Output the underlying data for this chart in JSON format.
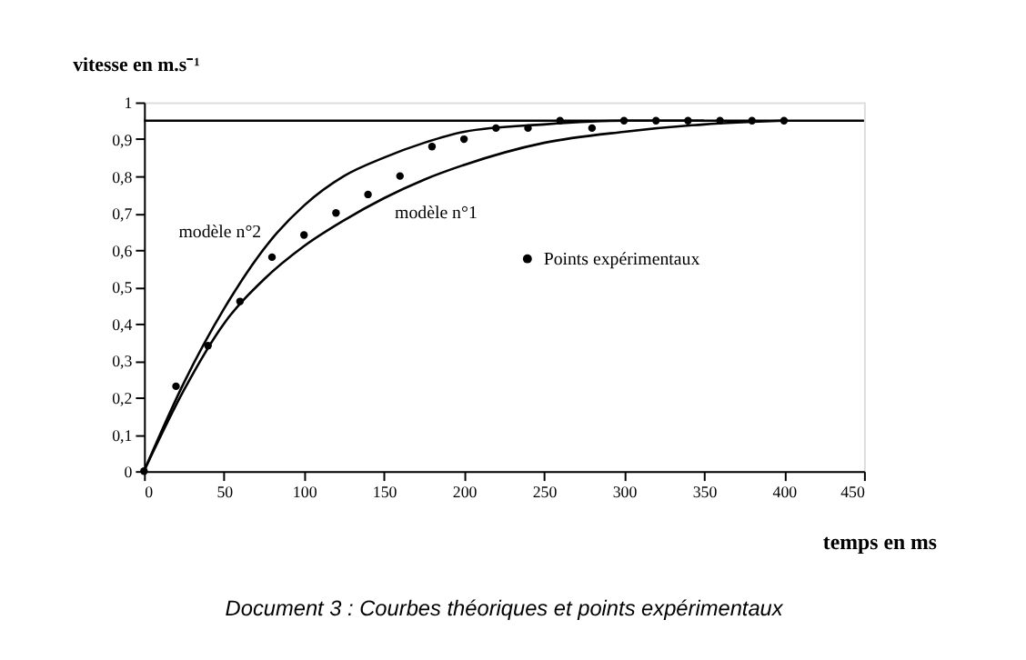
{
  "chart_data": {
    "type": "line",
    "title": "Document 3 : Courbes théoriques et points expérimentaux",
    "xlabel": "temps en ms",
    "ylabel": "vitesse en m.s⁻¹",
    "xlim": [
      0,
      450
    ],
    "xticks": [
      0,
      50,
      100,
      150,
      200,
      250,
      300,
      350,
      400,
      450
    ],
    "ylim": [
      0,
      1
    ],
    "yticks": [
      0,
      {
        "value": 0.1,
        "label": "0,1"
      },
      {
        "value": 0.2,
        "label": "0,2"
      },
      {
        "value": 0.3,
        "label": "0,3"
      },
      {
        "value": 0.4,
        "label": "0,4"
      },
      {
        "value": 0.5,
        "label": "0,5"
      },
      {
        "value": 0.6,
        "label": "0,6"
      },
      {
        "value": 0.7,
        "label": "0,7"
      },
      {
        "value": 0.8,
        "label": "0,8"
      },
      {
        "value": 0.9,
        "label": "0,9"
      },
      1
    ],
    "grid": false,
    "legend": "right",
    "ref_lines": [
      {
        "axis": "y",
        "value": 0.95,
        "color": "#000000"
      }
    ],
    "series": [
      {
        "name": "modèle n°2",
        "type": "line",
        "color": "#000000",
        "x": [
          0,
          25,
          50,
          80,
          100,
          125,
          150,
          175,
          200,
          250,
          300,
          350
        ],
        "values": [
          0,
          0.24,
          0.44,
          0.63,
          0.72,
          0.8,
          0.85,
          0.89,
          0.92,
          0.94,
          0.95,
          0.95
        ]
      },
      {
        "name": "modèle n°1",
        "type": "line",
        "color": "#000000",
        "x": [
          0,
          25,
          50,
          75,
          100,
          125,
          150,
          175,
          200,
          250,
          300,
          350,
          400
        ],
        "values": [
          0,
          0.22,
          0.4,
          0.52,
          0.61,
          0.68,
          0.74,
          0.79,
          0.83,
          0.89,
          0.92,
          0.94,
          0.95
        ]
      },
      {
        "name": "Points expérimentaux",
        "type": "scatter",
        "color": "#000000",
        "marker": "circle",
        "x": [
          0,
          20,
          40,
          60,
          80,
          100,
          120,
          140,
          160,
          180,
          200,
          220,
          240,
          260,
          280,
          300,
          320,
          340,
          360,
          380,
          400
        ],
        "values": [
          0,
          0.23,
          0.34,
          0.46,
          0.58,
          0.64,
          0.7,
          0.75,
          0.8,
          0.88,
          0.9,
          0.93,
          0.93,
          0.95,
          0.93,
          0.95,
          0.95,
          0.95,
          0.95,
          0.95,
          0.95
        ]
      }
    ]
  }
}
